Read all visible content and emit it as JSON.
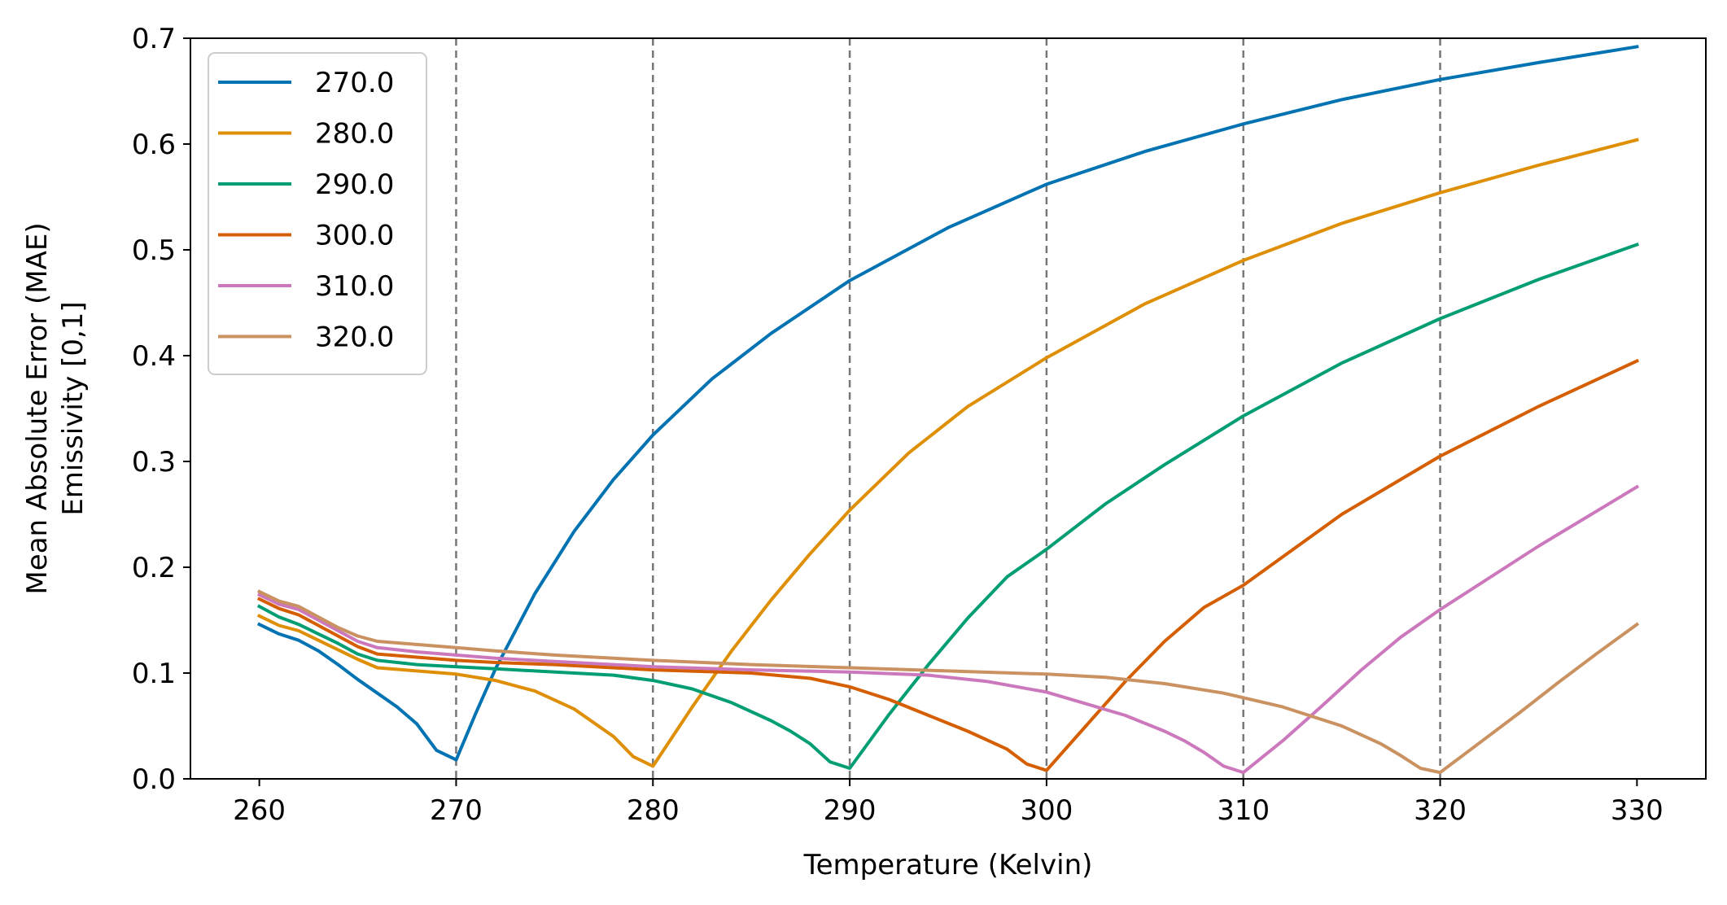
{
  "chart_data": {
    "type": "line",
    "title": "",
    "xlabel": "Temperature (Kelvin)",
    "ylabel": [
      "Mean Absolute Error (MAE)",
      "Emissivity [0,1]"
    ],
    "xlim": [
      256.5,
      333.5
    ],
    "ylim": [
      0,
      0.7
    ],
    "xticks": [
      260,
      270,
      280,
      290,
      300,
      310,
      320,
      330
    ],
    "xtick_labels": [
      "260",
      "270",
      "280",
      "290",
      "300",
      "310",
      "320",
      "330"
    ],
    "yticks": [
      0.0,
      0.1,
      0.2,
      0.3,
      0.4,
      0.5,
      0.6,
      0.7
    ],
    "ytick_labels": [
      "0.0",
      "0.1",
      "0.2",
      "0.3",
      "0.4",
      "0.5",
      "0.6",
      "0.7"
    ],
    "vlines": [
      270,
      280,
      290,
      300,
      310,
      320
    ],
    "grid": false,
    "legend_position": "upper-left",
    "series": [
      {
        "name": "270.0",
        "color": "#0173b2",
        "x": [
          260,
          261,
          262,
          263,
          264,
          265,
          266,
          267,
          268,
          269,
          270,
          271,
          272,
          274,
          276,
          278,
          280,
          283,
          286,
          290,
          295,
          300,
          305,
          310,
          315,
          320,
          325,
          330
        ],
        "y": [
          0.146,
          0.137,
          0.131,
          0.121,
          0.108,
          0.094,
          0.081,
          0.068,
          0.052,
          0.027,
          0.018,
          0.062,
          0.104,
          0.175,
          0.234,
          0.283,
          0.325,
          0.378,
          0.421,
          0.471,
          0.521,
          0.562,
          0.593,
          0.619,
          0.642,
          0.661,
          0.677,
          0.692
        ]
      },
      {
        "name": "280.0",
        "color": "#de8f05",
        "x": [
          260,
          261,
          262,
          263,
          264,
          265,
          266,
          268,
          270,
          272,
          274,
          276,
          278,
          279,
          280,
          281,
          282,
          284,
          286,
          288,
          290,
          293,
          296,
          300,
          305,
          310,
          315,
          320,
          325,
          330
        ],
        "y": [
          0.154,
          0.145,
          0.14,
          0.131,
          0.122,
          0.113,
          0.105,
          0.102,
          0.099,
          0.093,
          0.083,
          0.066,
          0.04,
          0.021,
          0.012,
          0.04,
          0.068,
          0.121,
          0.169,
          0.213,
          0.254,
          0.308,
          0.352,
          0.398,
          0.449,
          0.49,
          0.525,
          0.554,
          0.58,
          0.604
        ]
      },
      {
        "name": "290.0",
        "color": "#029e73",
        "x": [
          260,
          261,
          262,
          263,
          264,
          265,
          266,
          268,
          270,
          272,
          274,
          276,
          278,
          280,
          282,
          284,
          286,
          287,
          288,
          289,
          290,
          292,
          294,
          296,
          298,
          300,
          303,
          306,
          310,
          315,
          320,
          325,
          330
        ],
        "y": [
          0.163,
          0.153,
          0.146,
          0.137,
          0.128,
          0.118,
          0.112,
          0.108,
          0.106,
          0.104,
          0.102,
          0.1,
          0.098,
          0.093,
          0.085,
          0.072,
          0.055,
          0.045,
          0.033,
          0.016,
          0.01,
          0.061,
          0.108,
          0.152,
          0.191,
          0.217,
          0.26,
          0.297,
          0.343,
          0.393,
          0.435,
          0.472,
          0.505
        ]
      },
      {
        "name": "300.0",
        "color": "#d55e00",
        "x": [
          260,
          261,
          262,
          263,
          264,
          265,
          266,
          268,
          270,
          272,
          275,
          280,
          285,
          288,
          290,
          292,
          294,
          296,
          298,
          299,
          300,
          302,
          304,
          306,
          308,
          310,
          315,
          320,
          325,
          330
        ],
        "y": [
          0.17,
          0.161,
          0.155,
          0.145,
          0.135,
          0.125,
          0.118,
          0.115,
          0.112,
          0.11,
          0.108,
          0.103,
          0.1,
          0.095,
          0.087,
          0.075,
          0.06,
          0.045,
          0.028,
          0.014,
          0.008,
          0.05,
          0.092,
          0.13,
          0.162,
          0.183,
          0.25,
          0.305,
          0.352,
          0.395
        ]
      },
      {
        "name": "310.0",
        "color": "#cc78bc",
        "x": [
          260,
          261,
          262,
          263,
          264,
          265,
          266,
          268,
          270,
          272,
          275,
          280,
          285,
          290,
          294,
          297,
          300,
          302,
          304,
          306,
          307,
          308,
          309,
          310,
          312,
          314,
          316,
          318,
          320,
          325,
          330
        ],
        "y": [
          0.174,
          0.165,
          0.16,
          0.15,
          0.14,
          0.13,
          0.124,
          0.12,
          0.117,
          0.114,
          0.111,
          0.106,
          0.103,
          0.101,
          0.098,
          0.092,
          0.082,
          0.071,
          0.06,
          0.045,
          0.036,
          0.025,
          0.012,
          0.006,
          0.036,
          0.069,
          0.103,
          0.134,
          0.16,
          0.22,
          0.276
        ]
      },
      {
        "name": "320.0",
        "color": "#ca9161",
        "x": [
          260,
          261,
          262,
          263,
          264,
          265,
          266,
          268,
          270,
          272,
          275,
          280,
          285,
          290,
          295,
          300,
          303,
          306,
          309,
          312,
          315,
          317,
          318,
          319,
          320,
          322,
          324,
          326,
          328,
          330
        ],
        "y": [
          0.177,
          0.168,
          0.163,
          0.153,
          0.143,
          0.135,
          0.13,
          0.127,
          0.124,
          0.121,
          0.117,
          0.112,
          0.108,
          0.105,
          0.102,
          0.099,
          0.096,
          0.09,
          0.081,
          0.068,
          0.05,
          0.033,
          0.022,
          0.01,
          0.006,
          0.034,
          0.062,
          0.091,
          0.119,
          0.146
        ]
      }
    ]
  }
}
